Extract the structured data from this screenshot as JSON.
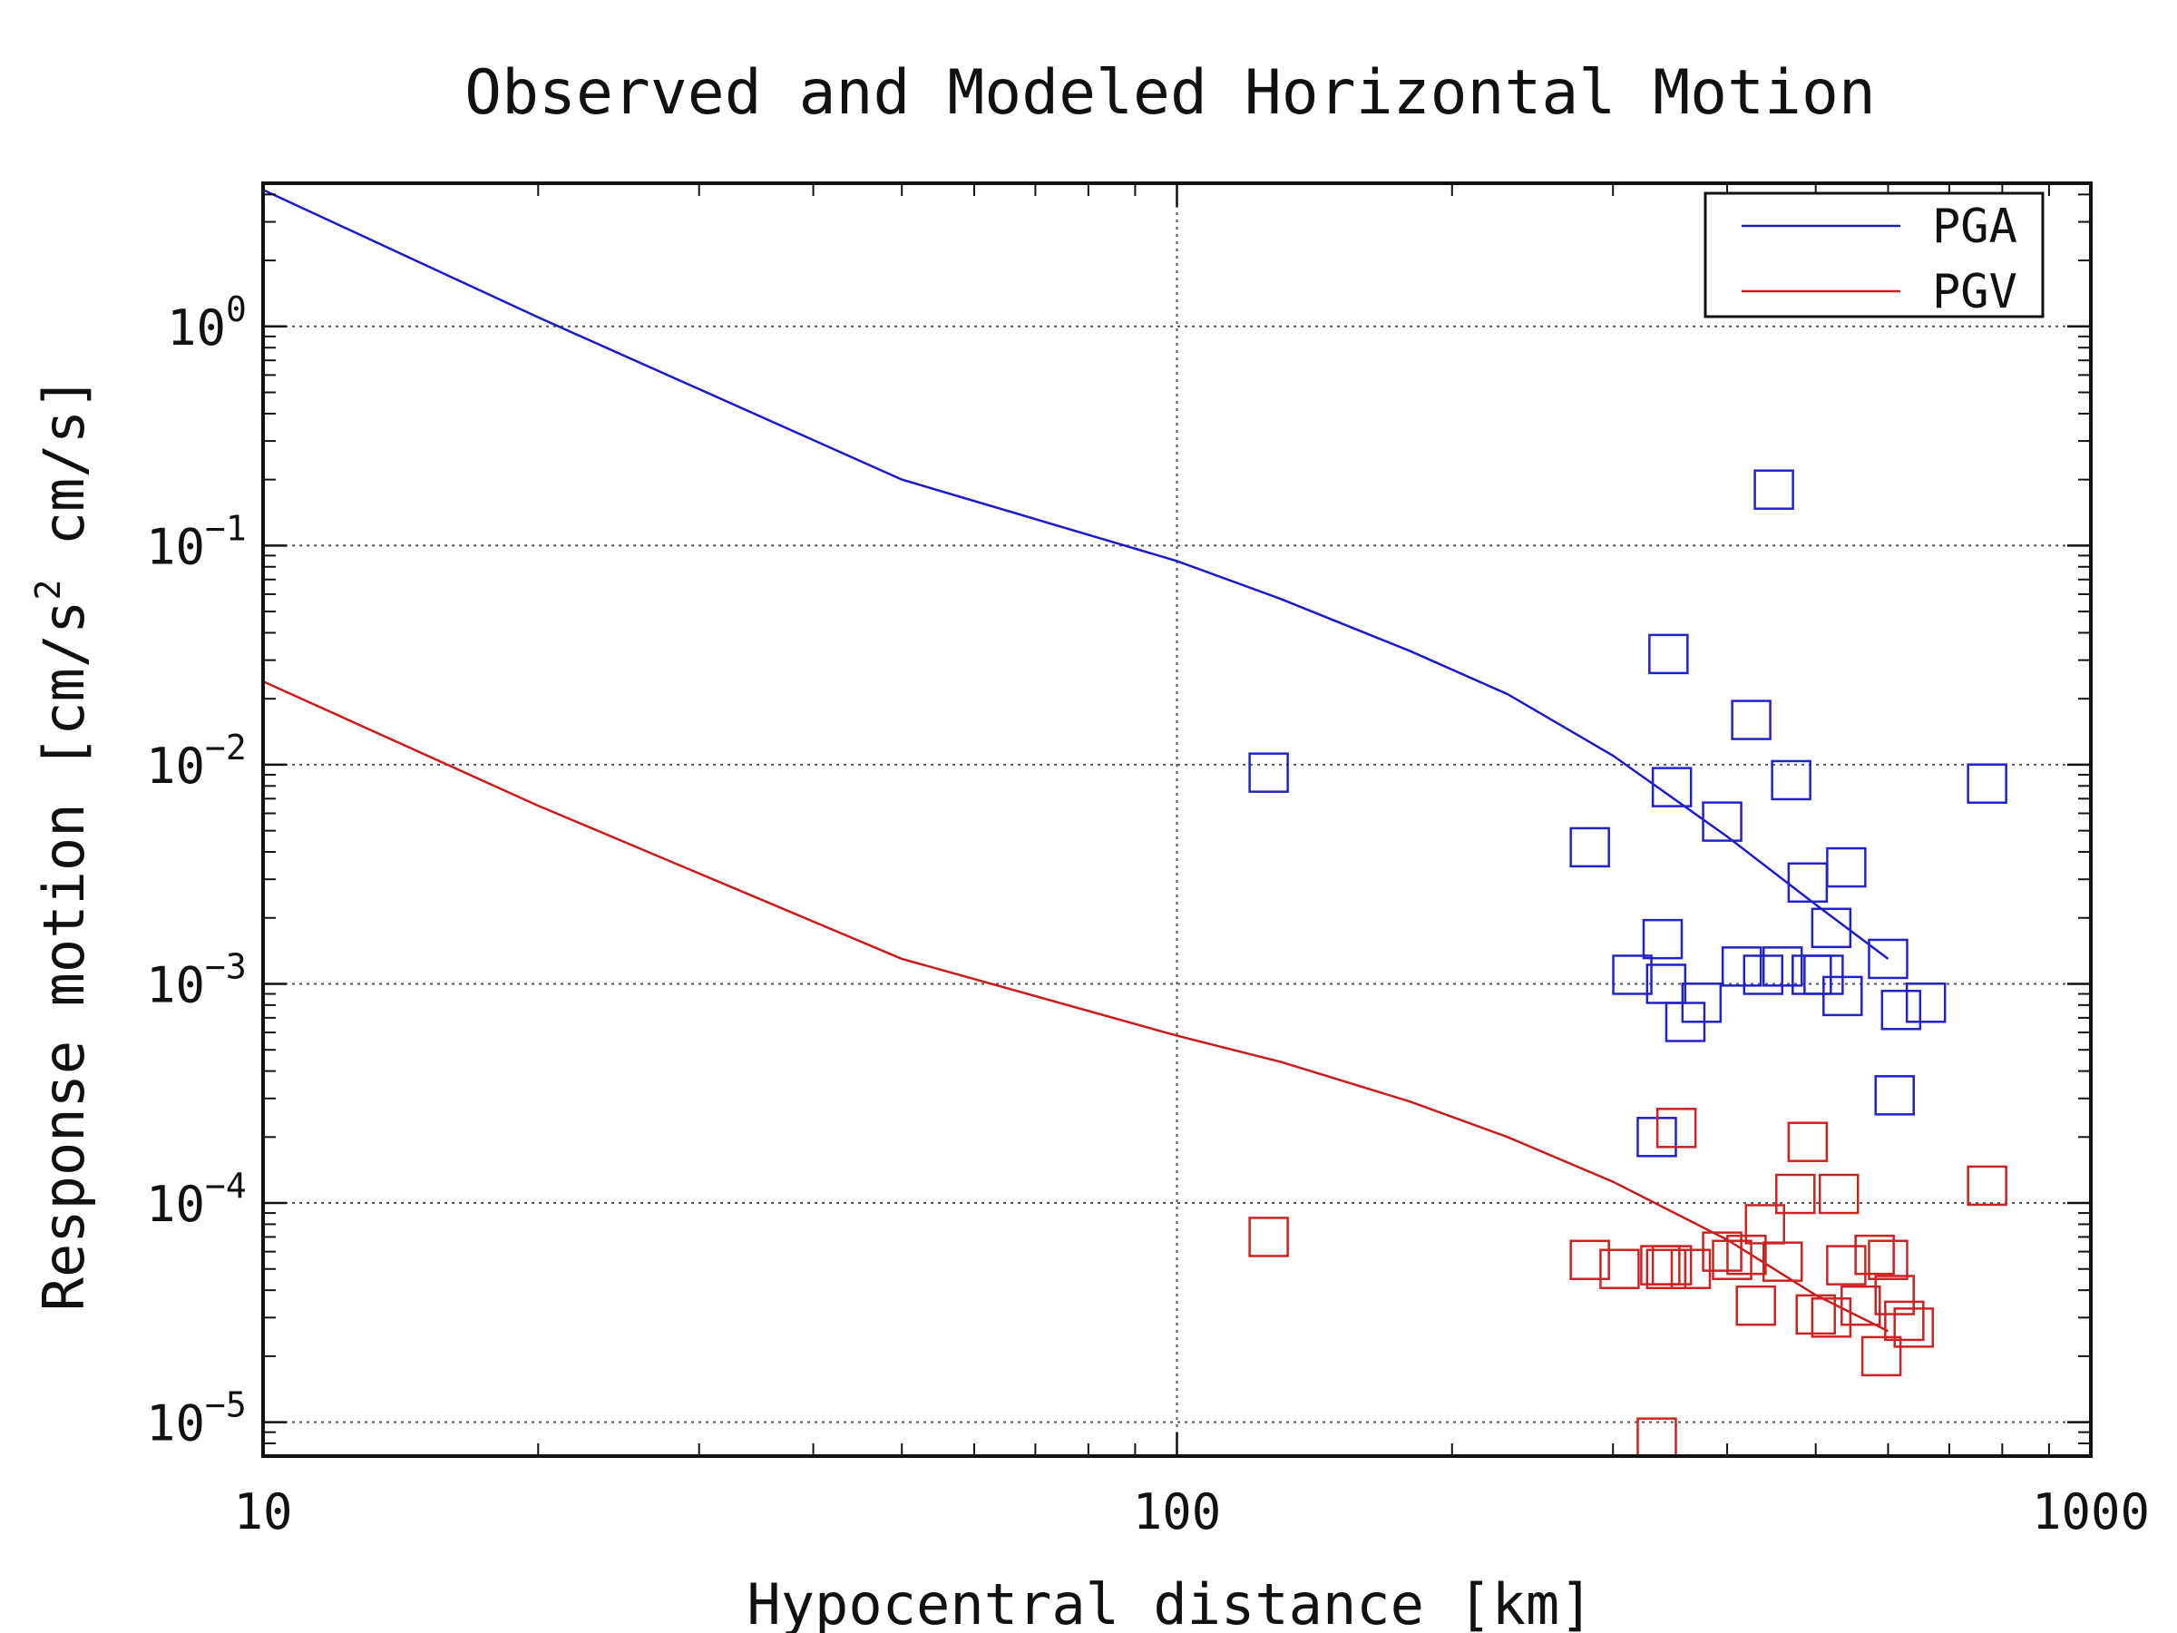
{
  "chart_data": {
    "type": "scatter",
    "title": "Observed and Modeled Horizontal Motion",
    "xlabel": "Hypocentral distance [km]",
    "ylabel": "Response motion [cm/s² cm/s]",
    "xscale": "log",
    "yscale": "log",
    "xlim": [
      10,
      1000
    ],
    "ylim": [
      7e-06,
      4.5
    ],
    "x_ticks": [
      {
        "value": 10,
        "label": "10"
      },
      {
        "value": 100,
        "label": "100"
      },
      {
        "value": 1000,
        "label": "1000"
      }
    ],
    "y_ticks": [
      {
        "value": 1,
        "label": "10",
        "exp": "0"
      },
      {
        "value": 0.1,
        "label": "10",
        "exp": "−1"
      },
      {
        "value": 0.01,
        "label": "10",
        "exp": "−2"
      },
      {
        "value": 0.001,
        "label": "10",
        "exp": "−3"
      },
      {
        "value": 0.0001,
        "label": "10",
        "exp": "−4"
      },
      {
        "value": 1e-05,
        "label": "10",
        "exp": "−5"
      }
    ],
    "grid": true,
    "legend_position": "top-right",
    "series": [
      {
        "name": "PGA",
        "kind": "line",
        "color": "#1a1acc",
        "x": [
          10,
          20,
          50,
          100,
          130,
          180,
          230,
          300,
          400,
          500,
          600
        ],
        "y": [
          4.2,
          1.1,
          0.2,
          0.085,
          0.057,
          0.033,
          0.021,
          0.011,
          0.0047,
          0.0023,
          0.0013
        ]
      },
      {
        "name": "PGV",
        "kind": "line",
        "color": "#cc1a1a",
        "x": [
          10,
          20,
          50,
          100,
          130,
          180,
          230,
          300,
          400,
          500,
          600
        ],
        "y": [
          0.024,
          0.0065,
          0.0013,
          0.00058,
          0.00044,
          0.00029,
          0.0002,
          0.000125,
          6.8e-05,
          3.8e-05,
          2.6e-05
        ]
      },
      {
        "kind": "scatter",
        "marker": "square",
        "color": "#2222cc",
        "x": [
          126,
          283,
          315,
          335,
          340,
          343,
          345,
          348,
          360,
          375,
          395,
          415,
          425,
          438,
          450,
          460,
          470,
          490,
          495,
          510,
          520,
          535,
          540,
          600,
          610,
          620,
          660,
          770
        ],
        "y": [
          0.0092,
          0.0042,
          0.0011,
          0.0002,
          0.0016,
          0.001,
          0.032,
          0.0079,
          0.00067,
          0.00082,
          0.0055,
          0.0012,
          0.016,
          0.0011,
          0.18,
          0.0012,
          0.0085,
          0.0029,
          0.0011,
          0.0011,
          0.0018,
          0.00088,
          0.0034,
          0.0013,
          0.00031,
          0.00076,
          0.00082,
          0.0082
        ]
      },
      {
        "kind": "scatter",
        "marker": "square",
        "color": "#cc2222",
        "x": [
          126,
          283,
          305,
          335,
          338,
          343,
          348,
          352,
          365,
          395,
          405,
          420,
          430,
          440,
          460,
          475,
          490,
          500,
          520,
          530,
          540,
          560,
          580,
          590,
          600,
          610,
          625,
          640,
          770
        ],
        "y": [
          7e-05,
          5.5e-05,
          5e-05,
          8.5e-06,
          5.2e-05,
          5e-05,
          5.2e-05,
          0.00022,
          5e-05,
          6e-05,
          5.5e-05,
          5.8e-05,
          3.4e-05,
          8e-05,
          5.4e-05,
          0.00011,
          0.00019,
          3.1e-05,
          3e-05,
          0.00011,
          5.2e-05,
          3.4e-05,
          5.8e-05,
          2e-05,
          5.5e-05,
          3.8e-05,
          2.9e-05,
          2.7e-05,
          0.00012
        ]
      }
    ]
  }
}
